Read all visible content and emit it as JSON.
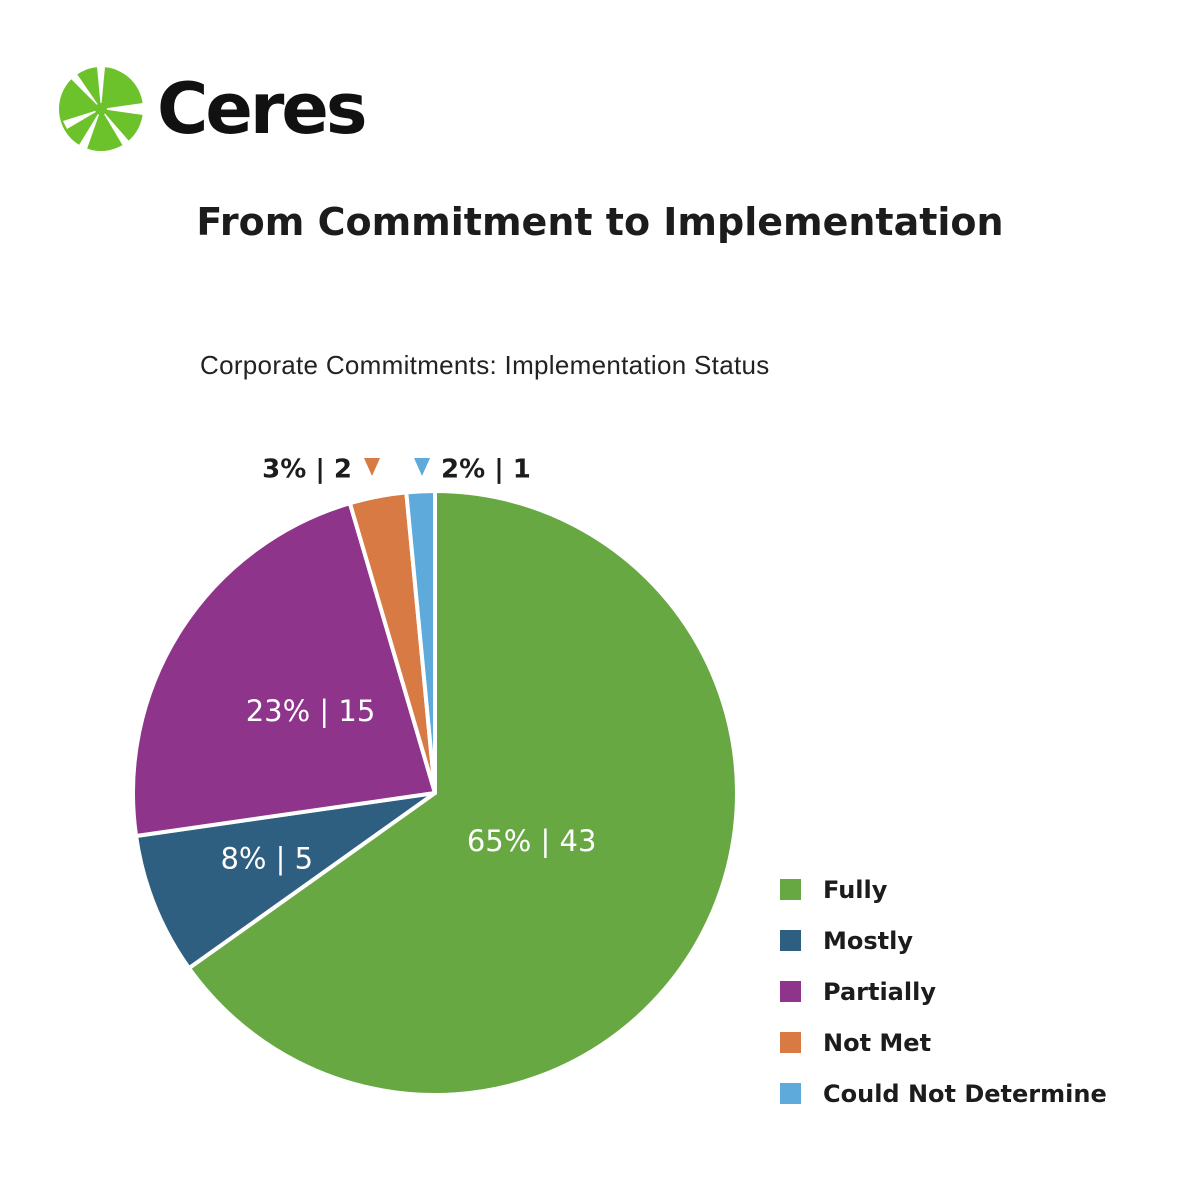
{
  "brand": {
    "name": "Ceres"
  },
  "title": "From Commitment to Implementation",
  "subtitle": "Corporate Commitments: Implementation Status",
  "chart_data": {
    "type": "pie",
    "title": "Corporate Commitments: Implementation Status",
    "slices": [
      {
        "label": "Fully",
        "percent": 65,
        "count": 43,
        "color": "#67a843"
      },
      {
        "label": "Mostly",
        "percent": 8,
        "count": 5,
        "color": "#2f5f80"
      },
      {
        "label": "Partially",
        "percent": 23,
        "count": 15,
        "color": "#8f348b"
      },
      {
        "label": "Not Met",
        "percent": 3,
        "count": 2,
        "color": "#d87a43"
      },
      {
        "label": "Could Not Determine",
        "percent": 2,
        "count": 1,
        "color": "#5eaadb"
      }
    ],
    "data_labels": [
      "65% | 43",
      "8% | 5",
      "23% | 15",
      "3% | 2",
      "2% | 1"
    ],
    "legend_position": "bottom-right"
  }
}
